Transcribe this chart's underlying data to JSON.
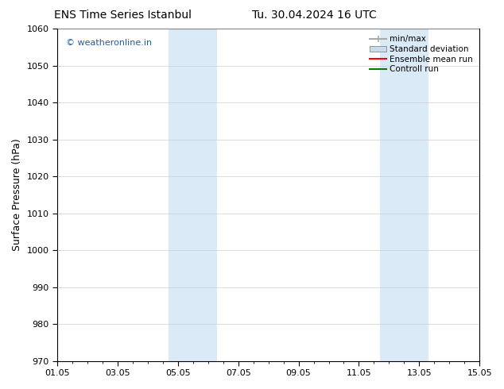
{
  "title_left": "ENS Time Series Istanbul",
  "title_right": "Tu. 30.04.2024 16 UTC",
  "ylabel": "Surface Pressure (hPa)",
  "ylim": [
    970,
    1060
  ],
  "yticks": [
    970,
    980,
    990,
    1000,
    1010,
    1020,
    1030,
    1040,
    1050,
    1060
  ],
  "xlim_start": 0,
  "xlim_end": 14,
  "xtick_labels": [
    "01.05",
    "03.05",
    "05.05",
    "07.05",
    "09.05",
    "11.05",
    "13.05",
    "15.05"
  ],
  "xtick_positions": [
    0,
    2,
    4,
    6,
    8,
    10,
    12,
    14
  ],
  "shaded_bands": [
    {
      "x_start": 3.7,
      "x_end": 5.3
    },
    {
      "x_start": 10.7,
      "x_end": 12.3
    }
  ],
  "shaded_band_color": "#daeaf7",
  "watermark_text": "© weatheronline.in",
  "watermark_color": "#1a5fa8",
  "legend_entries": [
    {
      "label": "min/max",
      "color": "#aaaaaa",
      "lw": 1.5
    },
    {
      "label": "Standard deviation",
      "color": "#c8dcee",
      "lw": 8
    },
    {
      "label": "Ensemble mean run",
      "color": "red",
      "lw": 1.5
    },
    {
      "label": "Controll run",
      "color": "green",
      "lw": 1.5
    }
  ],
  "background_color": "#ffffff",
  "grid_color": "#cccccc",
  "title_fontsize": 10,
  "tick_fontsize": 8,
  "ylabel_fontsize": 9,
  "legend_fontsize": 7.5,
  "watermark_fontsize": 8
}
